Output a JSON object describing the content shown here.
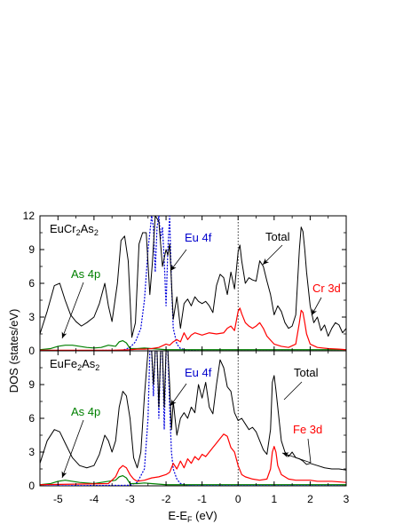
{
  "figure": {
    "xlabel": "E-E_F (eV)",
    "ylabel": "DOS (states/eV)",
    "xlim": [
      -5.5,
      3
    ],
    "x_ticks": [
      "-5",
      "-4",
      "-3",
      "-2",
      "-1",
      "0",
      "1",
      "2",
      "3"
    ],
    "y_ticks": [
      "0",
      "3",
      "6",
      "9",
      "12"
    ],
    "fermi_line": "vertical dotted line at E-E_F = 0"
  },
  "colors": {
    "total": "#000000",
    "d_states": "#ff0000",
    "as_4p": "#008000",
    "eu_4f": "#0000dd",
    "label_black": "#000000",
    "label_red": "#ff0000",
    "label_green": "#008000",
    "label_blue": "#0000cc"
  },
  "chart_data": [
    {
      "type": "line",
      "panel": "top",
      "compound": "EuCr2As2",
      "compound_label": {
        "prefix": "EuCr",
        "sub1": "2",
        "mid": "As",
        "sub2": "2"
      },
      "xlabel": "E-E_F (eV)",
      "ylabel": "DOS (states/eV)",
      "xlim": [
        -5.5,
        3
      ],
      "ylim": [
        0,
        12
      ],
      "annotations": {
        "as_4p": "As 4p",
        "eu_4f": "Eu 4f",
        "total": "Total",
        "d_states": "Cr 3d"
      },
      "series": [
        {
          "name": "Total",
          "key": "total",
          "style": "solid",
          "x": [
            -5.5,
            -5.3,
            -5.1,
            -4.95,
            -4.8,
            -4.65,
            -4.5,
            -4.35,
            -4.2,
            -4.0,
            -3.85,
            -3.7,
            -3.6,
            -3.5,
            -3.35,
            -3.25,
            -3.15,
            -3.05,
            -2.95,
            -2.85,
            -2.75,
            -2.65,
            -2.55,
            -2.45,
            -2.38,
            -2.3,
            -2.2,
            -2.1,
            -2.0,
            -1.95,
            -1.9,
            -1.8,
            -1.7,
            -1.6,
            -1.5,
            -1.4,
            -1.3,
            -1.2,
            -1.1,
            -1.0,
            -0.9,
            -0.8,
            -0.7,
            -0.6,
            -0.5,
            -0.4,
            -0.3,
            -0.2,
            -0.1,
            0.0,
            0.05,
            0.1,
            0.2,
            0.3,
            0.4,
            0.5,
            0.6,
            0.7,
            0.8,
            0.9,
            1.0,
            1.1,
            1.2,
            1.3,
            1.4,
            1.5,
            1.6,
            1.7,
            1.75,
            1.8,
            1.85,
            1.9,
            2.0,
            2.1,
            2.2,
            2.3,
            2.4,
            2.5,
            2.6,
            2.7,
            2.8,
            2.9,
            3.0
          ],
          "y": [
            1.5,
            3.5,
            5.8,
            6.0,
            4.5,
            3.2,
            2.6,
            2.2,
            2.5,
            3.0,
            4.2,
            6.0,
            4.0,
            2.6,
            6.0,
            9.8,
            10.2,
            8.0,
            1.2,
            2.5,
            9.5,
            10.5,
            10.5,
            5.0,
            7.8,
            12.0,
            11.5,
            7.5,
            9.0,
            8.5,
            9.5,
            2.8,
            4.8,
            2.0,
            4.2,
            4.6,
            4.0,
            4.8,
            4.4,
            4.2,
            4.4,
            4.0,
            3.4,
            5.8,
            6.8,
            6.5,
            5.0,
            7.0,
            5.5,
            8.8,
            9.4,
            8.0,
            6.0,
            6.5,
            6.3,
            6.2,
            8.0,
            7.5,
            6.2,
            5.0,
            3.2,
            4.0,
            3.5,
            2.5,
            2.0,
            2.2,
            3.2,
            9.0,
            11.0,
            10.6,
            9.0,
            7.0,
            4.0,
            2.5,
            3.0,
            1.8,
            2.3,
            1.3,
            2.0,
            2.5,
            2.3,
            1.6,
            2.0
          ]
        },
        {
          "name": "Cr 3d",
          "key": "d_states",
          "style": "solid",
          "x": [
            -5.5,
            -3.5,
            -3.0,
            -2.8,
            -2.6,
            -2.4,
            -2.2,
            -2.0,
            -1.9,
            -1.8,
            -1.7,
            -1.6,
            -1.5,
            -1.4,
            -1.3,
            -1.2,
            -1.0,
            -0.8,
            -0.6,
            -0.4,
            -0.3,
            -0.2,
            -0.1,
            0.0,
            0.05,
            0.1,
            0.2,
            0.3,
            0.4,
            0.5,
            0.6,
            0.7,
            0.8,
            1.0,
            1.2,
            1.4,
            1.6,
            1.7,
            1.75,
            1.8,
            1.85,
            1.9,
            2.0,
            2.2,
            2.5,
            2.8,
            3.0
          ],
          "y": [
            0.05,
            0.05,
            0.1,
            0.15,
            0.15,
            0.2,
            0.3,
            0.6,
            0.5,
            0.8,
            1.0,
            0.8,
            1.6,
            1.0,
            1.4,
            1.6,
            1.4,
            1.6,
            1.5,
            1.6,
            2.0,
            2.2,
            1.8,
            3.5,
            3.8,
            3.3,
            2.5,
            2.2,
            2.0,
            2.2,
            2.5,
            2.0,
            1.3,
            0.6,
            0.4,
            0.3,
            0.6,
            2.5,
            3.6,
            3.4,
            2.5,
            1.5,
            0.6,
            0.3,
            0.2,
            0.15,
            0.1
          ]
        },
        {
          "name": "As 4p",
          "key": "as_4p",
          "style": "solid",
          "x": [
            -5.5,
            -5.2,
            -5.0,
            -4.8,
            -4.6,
            -4.4,
            -4.2,
            -4.0,
            -3.8,
            -3.6,
            -3.4,
            -3.3,
            -3.2,
            -3.1,
            -3.0,
            -2.8,
            -2.6,
            -2.4,
            -2.0,
            -1.0,
            0.0,
            1.0,
            2.0,
            3.0
          ],
          "y": [
            0.1,
            0.2,
            0.4,
            0.5,
            0.5,
            0.4,
            0.3,
            0.25,
            0.3,
            0.5,
            0.4,
            0.8,
            0.9,
            0.7,
            0.2,
            0.2,
            0.25,
            0.2,
            0.1,
            0.1,
            0.1,
            0.1,
            0.1,
            0.1
          ]
        },
        {
          "name": "Eu 4f",
          "key": "eu_4f",
          "style": "dotted",
          "x": [
            -5.5,
            -3.2,
            -3.0,
            -2.85,
            -2.7,
            -2.6,
            -2.5,
            -2.4,
            -2.35,
            -2.3,
            -2.25,
            -2.2,
            -2.15,
            -2.1,
            -2.05,
            -2.0,
            -1.95,
            -1.9,
            -1.85,
            -1.8,
            -1.7,
            -1.6,
            -1.4,
            -1.0,
            3.0
          ],
          "y": [
            0.0,
            0.05,
            0.3,
            0.8,
            2.0,
            4.5,
            9.0,
            12.0,
            11.0,
            7.0,
            11.0,
            12.0,
            10.0,
            11.0,
            8.0,
            4.0,
            9.0,
            12.0,
            6.0,
            2.0,
            0.6,
            0.2,
            0.05,
            0.0,
            0.0
          ]
        }
      ]
    },
    {
      "type": "line",
      "panel": "bottom",
      "compound": "EuFe2As2",
      "compound_label": {
        "prefix": "EuFe",
        "sub1": "2",
        "mid": "As",
        "sub2": "2"
      },
      "xlabel": "E-E_F (eV)",
      "ylabel": "DOS (states/eV)",
      "xlim": [
        -5.5,
        3
      ],
      "ylim": [
        0,
        12
      ],
      "annotations": {
        "as_4p": "As 4p",
        "eu_4f": "Eu 4f",
        "total": "Total",
        "d_states": "Fe 3d"
      },
      "series": [
        {
          "name": "Total",
          "key": "total",
          "style": "solid",
          "x": [
            -5.5,
            -5.3,
            -5.1,
            -4.95,
            -4.8,
            -4.6,
            -4.4,
            -4.2,
            -4.0,
            -3.85,
            -3.7,
            -3.6,
            -3.5,
            -3.4,
            -3.3,
            -3.2,
            -3.1,
            -3.0,
            -2.9,
            -2.8,
            -2.7,
            -2.6,
            -2.5,
            -2.4,
            -2.35,
            -2.3,
            -2.25,
            -2.2,
            -2.15,
            -2.1,
            -2.05,
            -2.0,
            -1.95,
            -1.9,
            -1.85,
            -1.8,
            -1.7,
            -1.6,
            -1.5,
            -1.4,
            -1.3,
            -1.2,
            -1.1,
            -1.0,
            -0.9,
            -0.8,
            -0.7,
            -0.6,
            -0.5,
            -0.4,
            -0.3,
            -0.2,
            -0.1,
            0.0,
            0.1,
            0.2,
            0.3,
            0.4,
            0.5,
            0.6,
            0.7,
            0.8,
            0.9,
            0.95,
            1.0,
            1.05,
            1.1,
            1.2,
            1.3,
            1.4,
            1.5,
            1.6,
            1.7,
            1.8,
            1.9,
            2.0,
            2.2,
            2.4,
            2.6,
            2.8,
            3.0
          ],
          "y": [
            2.0,
            4.0,
            5.0,
            4.8,
            3.8,
            2.5,
            1.8,
            1.6,
            1.8,
            2.8,
            4.5,
            4.0,
            3.0,
            4.0,
            7.0,
            8.4,
            8.0,
            6.0,
            2.5,
            1.6,
            3.0,
            8.0,
            12.0,
            12.0,
            9.0,
            12.0,
            12.0,
            7.0,
            12.0,
            12.0,
            7.0,
            12.0,
            12.0,
            9.0,
            5.0,
            7.5,
            4.5,
            6.0,
            6.5,
            6.0,
            7.0,
            6.5,
            9.0,
            7.8,
            9.2,
            7.0,
            6.4,
            9.0,
            11.2,
            10.5,
            8.8,
            8.4,
            6.5,
            5.8,
            6.0,
            5.5,
            5.0,
            5.2,
            4.8,
            4.0,
            3.2,
            2.8,
            5.0,
            9.2,
            9.8,
            8.5,
            7.0,
            4.0,
            3.0,
            2.6,
            3.0,
            2.5,
            2.4,
            2.2,
            1.9,
            2.0,
            1.8,
            1.6,
            1.5,
            1.5,
            1.4
          ]
        },
        {
          "name": "Fe 3d",
          "key": "d_states",
          "style": "solid",
          "x": [
            -5.5,
            -3.6,
            -3.4,
            -3.3,
            -3.2,
            -3.1,
            -3.0,
            -2.9,
            -2.8,
            -2.6,
            -2.4,
            -2.2,
            -2.0,
            -1.9,
            -1.8,
            -1.7,
            -1.6,
            -1.5,
            -1.4,
            -1.3,
            -1.2,
            -1.1,
            -1.0,
            -0.9,
            -0.8,
            -0.7,
            -0.6,
            -0.5,
            -0.4,
            -0.3,
            -0.2,
            -0.1,
            0.0,
            0.1,
            0.2,
            0.4,
            0.6,
            0.8,
            0.9,
            0.95,
            1.0,
            1.05,
            1.1,
            1.2,
            1.4,
            1.6,
            1.8,
            2.0,
            2.2,
            2.4,
            2.6,
            2.8,
            3.0
          ],
          "y": [
            0.1,
            0.2,
            0.8,
            1.5,
            1.8,
            1.6,
            1.0,
            0.6,
            0.4,
            0.5,
            0.7,
            0.8,
            1.0,
            1.2,
            2.0,
            1.5,
            2.2,
            1.6,
            2.4,
            2.0,
            2.6,
            2.3,
            2.8,
            2.6,
            3.0,
            3.4,
            3.8,
            4.2,
            4.6,
            4.4,
            3.4,
            3.0,
            1.8,
            1.0,
            0.8,
            0.6,
            0.5,
            0.6,
            1.5,
            3.0,
            3.5,
            3.0,
            1.8,
            1.0,
            0.6,
            0.5,
            0.5,
            0.5,
            0.4,
            0.4,
            0.4,
            0.35,
            0.3
          ]
        },
        {
          "name": "As 4p",
          "key": "as_4p",
          "style": "solid",
          "x": [
            -5.5,
            -5.2,
            -5.0,
            -4.8,
            -4.6,
            -4.4,
            -4.2,
            -4.0,
            -3.8,
            -3.6,
            -3.4,
            -3.3,
            -3.2,
            -3.1,
            -3.0,
            -2.8,
            -2.6,
            -2.4,
            -2.0,
            -1.0,
            0.0,
            1.0,
            2.0,
            3.0
          ],
          "y": [
            0.1,
            0.2,
            0.4,
            0.5,
            0.4,
            0.3,
            0.25,
            0.2,
            0.3,
            0.4,
            0.5,
            0.8,
            0.9,
            0.7,
            0.2,
            0.2,
            0.25,
            0.2,
            0.1,
            0.1,
            0.1,
            0.1,
            0.1,
            0.1
          ]
        },
        {
          "name": "Eu 4f",
          "key": "eu_4f",
          "style": "dotted",
          "x": [
            -5.5,
            -3.0,
            -2.8,
            -2.6,
            -2.5,
            -2.45,
            -2.4,
            -2.35,
            -2.3,
            -2.25,
            -2.2,
            -2.15,
            -2.1,
            -2.05,
            -2.0,
            -1.95,
            -1.9,
            -1.85,
            -1.8,
            -1.7,
            -1.6,
            -1.4,
            -1.2,
            3.0
          ],
          "y": [
            0.0,
            0.05,
            0.3,
            1.5,
            6.0,
            12.0,
            12.0,
            8.0,
            12.0,
            12.0,
            6.0,
            12.0,
            12.0,
            5.0,
            12.0,
            12.0,
            7.0,
            3.0,
            1.5,
            0.6,
            0.2,
            0.05,
            0.0,
            0.0
          ]
        }
      ]
    }
  ]
}
